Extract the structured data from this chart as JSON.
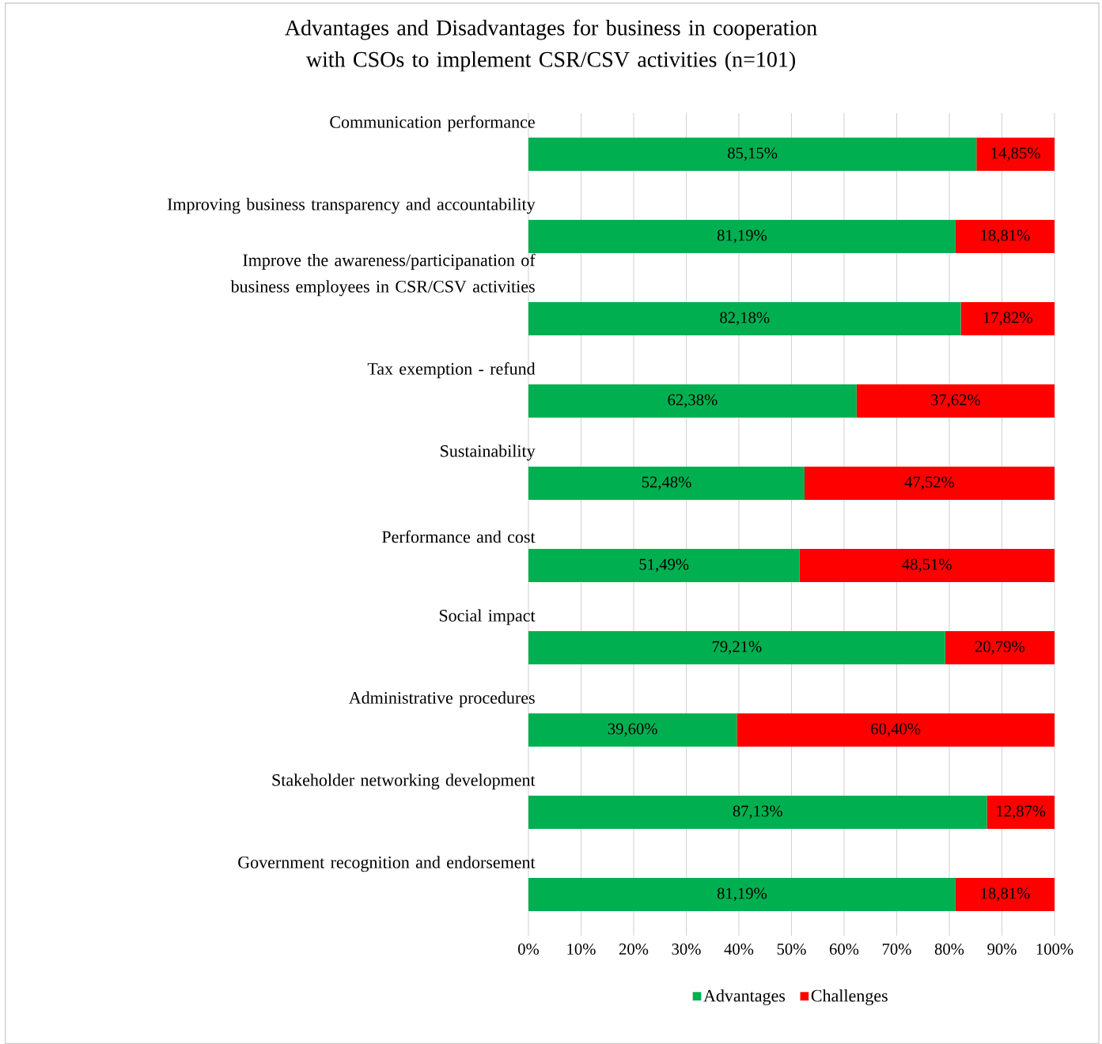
{
  "chart_data": {
    "type": "bar",
    "orientation": "horizontal",
    "stacked": true,
    "title": "Advantages and Disadvantages for business in cooperation with CSOs to implement CSR/CSV activities (n=101)",
    "categories": [
      "Communication performance",
      "Improving business transparency and accountability",
      "Improve the awareness/participanation of business employees in CSR/CSV activities",
      "Tax exemption - refund",
      "Sustainability",
      "Performance and cost",
      "Social impact",
      "Administrative procedures",
      "Stakeholder networking development",
      "Government recognition and endorsement"
    ],
    "series": [
      {
        "name": "Advantages",
        "color": "#00b050",
        "values": [
          85.15,
          81.19,
          82.18,
          62.38,
          52.48,
          51.49,
          79.21,
          39.6,
          87.13,
          81.19
        ],
        "value_labels": [
          "85,15%",
          "81,19%",
          "82,18%",
          "62,38%",
          "52,48%",
          "51,49%",
          "79,21%",
          "39,60%",
          "87,13%",
          "81,19%"
        ]
      },
      {
        "name": "Challenges",
        "color": "#ff0000",
        "values": [
          14.85,
          18.81,
          17.82,
          37.62,
          47.52,
          48.51,
          20.79,
          60.4,
          12.87,
          18.81
        ],
        "value_labels": [
          "14,85%",
          "18,81%",
          "17,82%",
          "37,62%",
          "47,52%",
          "48,51%",
          "20,79%",
          "60,40%",
          "12,87%",
          "18,81%"
        ]
      }
    ],
    "xlim": [
      0,
      100
    ],
    "xticks": [
      {
        "value": 0,
        "label": "0%"
      },
      {
        "value": 10,
        "label": "10%"
      },
      {
        "value": 20,
        "label": "20%"
      },
      {
        "value": 30,
        "label": "30%"
      },
      {
        "value": 40,
        "label": "40%"
      },
      {
        "value": 50,
        "label": "50%"
      },
      {
        "value": 60,
        "label": "60%"
      },
      {
        "value": 70,
        "label": "70%"
      },
      {
        "value": 80,
        "label": "80%"
      },
      {
        "value": 90,
        "label": "90%"
      },
      {
        "value": 100,
        "label": "100%"
      }
    ],
    "grid": "x",
    "legend": "bottom"
  }
}
